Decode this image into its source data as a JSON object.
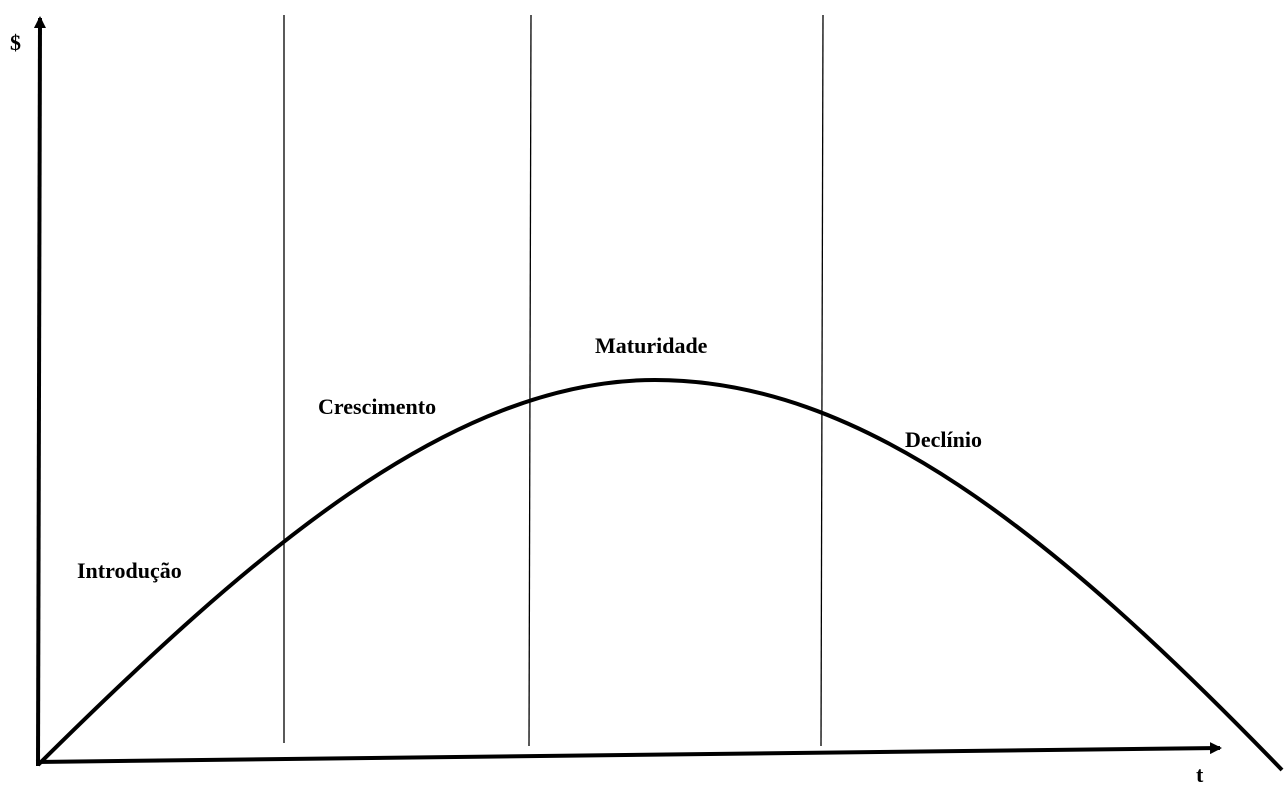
{
  "axes": {
    "y_label": "$",
    "x_label": "t"
  },
  "stages": [
    {
      "label": "Introdução"
    },
    {
      "label": "Crescimento"
    },
    {
      "label": "Maturidade"
    },
    {
      "label": "Declínio"
    }
  ]
}
